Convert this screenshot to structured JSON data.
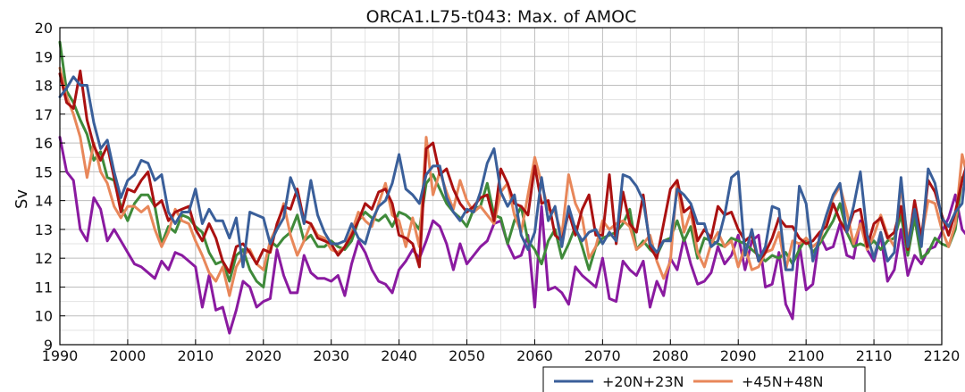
{
  "chart_data": {
    "type": "line",
    "title": "ORCA1.L75-t043: Max. of AMOC",
    "xlabel": "",
    "ylabel": "Sv",
    "xlim": [
      1990,
      2120
    ],
    "ylim": [
      9,
      20
    ],
    "xticks": [
      1990,
      2000,
      2010,
      2020,
      2030,
      2040,
      2050,
      2060,
      2070,
      2080,
      2090,
      2100,
      2110,
      2120
    ],
    "yticks": [
      9,
      10,
      11,
      12,
      13,
      14,
      15,
      16,
      17,
      18,
      19,
      20
    ],
    "grid": true,
    "legend_position": "bottom-center",
    "x_start": 1990,
    "series": [
      {
        "name": "+20N+23N",
        "color": "#3a5f9a",
        "values": [
          17.6,
          17.9,
          18.3,
          18.0,
          18.0,
          16.7,
          15.8,
          16.1,
          15.0,
          14.1,
          14.7,
          14.9,
          15.4,
          15.3,
          14.7,
          14.9,
          13.6,
          13.2,
          13.6,
          13.6,
          14.4,
          13.2,
          13.7,
          13.3,
          13.3,
          12.7,
          13.4,
          11.7,
          13.6,
          13.5,
          13.4,
          12.5,
          13.0,
          13.4,
          14.8,
          14.2,
          13.2,
          14.7,
          13.5,
          12.9,
          12.5,
          12.5,
          12.6,
          13.2,
          12.7,
          12.5,
          13.3,
          13.8,
          14.0,
          14.6,
          15.6,
          14.4,
          14.2,
          13.9,
          14.9,
          15.2,
          15.2,
          14.1,
          13.6,
          13.3,
          13.7,
          13.6,
          14.3,
          15.3,
          15.8,
          14.3,
          13.8,
          14.2,
          12.8,
          12.3,
          12.9,
          14.8,
          13.3,
          13.8,
          12.4,
          13.8,
          13.0,
          12.6,
          12.9,
          13.0,
          12.5,
          12.9,
          12.6,
          14.9,
          14.8,
          14.5,
          14.0,
          12.5,
          12.2,
          12.6,
          12.6,
          14.4,
          14.2,
          13.9,
          13.2,
          13.2,
          12.4,
          12.6,
          13.5,
          14.8,
          15.0,
          12.1,
          13.0,
          11.9,
          12.4,
          13.8,
          13.7,
          11.6,
          11.6,
          14.5,
          13.9,
          11.9,
          12.7,
          13.5,
          14.2,
          14.6,
          12.9,
          13.8,
          15.0,
          12.8,
          12.0,
          12.9,
          11.9,
          12.2,
          14.8,
          12.4,
          13.7,
          12.4,
          15.1,
          14.6,
          13.4,
          13.1,
          13.6,
          13.9,
          16.1,
          15.1
        ]
      },
      {
        "name": "",
        "color": "#aa1111",
        "values": [
          18.4,
          17.4,
          17.2,
          18.5,
          16.8,
          15.9,
          15.4,
          15.9,
          14.8,
          13.6,
          14.4,
          14.3,
          14.7,
          15.0,
          13.8,
          14.0,
          13.3,
          13.6,
          13.7,
          13.8,
          13.0,
          12.6,
          13.2,
          12.7,
          11.9,
          11.5,
          12.4,
          12.5,
          12.2,
          11.8,
          12.3,
          12.2,
          13.2,
          13.8,
          13.7,
          14.4,
          13.3,
          13.2,
          12.7,
          12.6,
          12.5,
          12.1,
          12.4,
          12.8,
          13.3,
          13.9,
          13.7,
          14.3,
          14.4,
          13.9,
          12.8,
          12.7,
          12.5,
          11.7,
          15.8,
          16.0,
          14.9,
          15.1,
          14.4,
          13.9,
          13.6,
          13.8,
          14.1,
          14.2,
          13.3,
          15.1,
          14.6,
          13.9,
          13.8,
          13.5,
          15.2,
          13.9,
          14.0,
          12.8,
          12.6,
          13.6,
          12.8,
          13.7,
          14.2,
          12.8,
          12.8,
          14.9,
          12.5,
          14.3,
          13.2,
          12.9,
          14.2,
          12.4,
          12.0,
          13.2,
          14.4,
          14.7,
          13.6,
          13.8,
          12.6,
          13.0,
          12.7,
          13.8,
          13.5,
          13.6,
          13.0,
          12.6,
          12.8,
          11.9,
          12.2,
          12.7,
          13.4,
          13.1,
          13.1,
          12.7,
          12.5,
          12.6,
          12.9,
          13.1,
          13.9,
          13.3,
          12.9,
          13.6,
          13.7,
          12.4,
          13.2,
          13.4,
          12.7,
          12.9,
          13.8,
          12.3,
          14.0,
          12.7,
          14.7,
          14.3,
          13.5,
          12.8,
          13.6,
          14.7,
          15.5,
          15.1
        ]
      },
      {
        "name": "",
        "color": "#3f8a3a",
        "values": [
          19.5,
          17.8,
          17.4,
          16.8,
          16.3,
          15.4,
          15.7,
          14.8,
          14.7,
          13.8,
          13.3,
          13.9,
          14.2,
          14.2,
          13.8,
          12.5,
          13.1,
          12.9,
          13.5,
          13.4,
          13.1,
          12.9,
          12.2,
          11.8,
          11.9,
          11.2,
          12.1,
          12.3,
          11.6,
          11.2,
          11.0,
          12.6,
          12.4,
          12.7,
          12.9,
          13.5,
          12.6,
          12.8,
          12.4,
          12.4,
          12.6,
          12.4,
          12.3,
          12.6,
          13.3,
          13.6,
          13.4,
          13.3,
          13.5,
          13.1,
          13.6,
          13.5,
          13.3,
          13.0,
          14.6,
          14.9,
          14.4,
          13.9,
          13.6,
          13.4,
          13.1,
          13.7,
          13.8,
          14.6,
          13.5,
          13.4,
          12.5,
          13.3,
          13.8,
          12.6,
          12.3,
          11.8,
          12.6,
          13.0,
          12.0,
          12.5,
          13.1,
          12.4,
          11.6,
          12.4,
          12.7,
          12.8,
          12.9,
          13.2,
          13.7,
          12.3,
          12.6,
          12.3,
          12.1,
          12.6,
          12.7,
          13.3,
          12.6,
          13.1,
          12.0,
          12.7,
          12.6,
          12.5,
          12.4,
          12.7,
          12.6,
          12.5,
          12.3,
          12.1,
          11.9,
          12.1,
          12.0,
          12.2,
          11.8,
          12.3,
          12.7,
          12.2,
          12.5,
          12.9,
          13.3,
          13.9,
          12.9,
          12.4,
          12.5,
          12.4,
          12.6,
          12.3,
          12.6,
          12.7,
          13.5,
          12.1,
          13.4,
          12.0,
          12.2,
          12.7,
          12.5,
          12.4,
          13.0,
          14.8,
          14.4,
          14.2
        ]
      },
      {
        "name": "+45N+48N",
        "color": "#e8875a",
        "values": [
          18.6,
          17.6,
          17.0,
          16.2,
          14.8,
          16.0,
          15.0,
          14.6,
          13.8,
          13.4,
          13.8,
          13.8,
          13.6,
          13.8,
          13.0,
          12.4,
          12.9,
          13.7,
          13.3,
          13.2,
          12.6,
          12.1,
          11.5,
          11.2,
          11.7,
          10.7,
          11.7,
          12.1,
          12.3,
          11.8,
          11.6,
          12.6,
          13.1,
          13.9,
          12.8,
          12.1,
          12.6,
          13.2,
          12.8,
          12.7,
          12.3,
          12.2,
          12.4,
          12.9,
          13.6,
          13.3,
          13.1,
          13.9,
          14.6,
          13.5,
          13.3,
          12.4,
          13.4,
          12.4,
          16.2,
          14.2,
          15.0,
          14.3,
          13.7,
          14.7,
          14.0,
          13.6,
          13.8,
          13.5,
          13.2,
          14.3,
          14.6,
          13.5,
          12.9,
          14.2,
          15.5,
          14.6,
          13.7,
          13.6,
          12.8,
          14.9,
          13.9,
          13.4,
          12.0,
          12.4,
          13.3,
          13.0,
          13.2,
          13.3,
          13.1,
          12.3,
          12.5,
          12.8,
          11.9,
          11.3,
          11.9,
          14.7,
          12.9,
          13.6,
          12.2,
          11.7,
          12.5,
          12.9,
          12.4,
          12.6,
          11.7,
          12.4,
          11.6,
          11.7,
          12.2,
          12.3,
          12.9,
          11.6,
          12.6,
          12.5,
          12.7,
          12.4,
          12.6,
          13.4,
          14.1,
          14.5,
          13.6,
          12.5,
          13.2,
          12.3,
          12.8,
          13.5,
          12.8,
          12.4,
          14.5,
          12.6,
          13.7,
          12.7,
          14.0,
          13.9,
          13.0,
          12.4,
          13.2,
          15.6,
          14.6,
          14.6
        ]
      },
      {
        "name": "",
        "color": "#8a1aa0",
        "values": [
          16.2,
          15.0,
          14.7,
          13.0,
          12.6,
          14.1,
          13.7,
          12.6,
          13.0,
          12.6,
          12.2,
          11.8,
          11.7,
          11.5,
          11.3,
          11.9,
          11.6,
          12.2,
          12.1,
          11.9,
          11.7,
          10.3,
          11.4,
          10.2,
          10.3,
          9.4,
          10.2,
          11.2,
          11.0,
          10.3,
          10.5,
          10.6,
          12.3,
          11.4,
          10.8,
          10.8,
          12.1,
          11.5,
          11.3,
          11.3,
          11.2,
          11.4,
          10.7,
          11.8,
          12.6,
          12.2,
          11.6,
          11.2,
          11.1,
          10.8,
          11.6,
          11.9,
          12.3,
          12.0,
          12.6,
          13.3,
          13.1,
          12.5,
          11.6,
          12.5,
          11.8,
          12.1,
          12.4,
          12.6,
          13.2,
          13.3,
          12.5,
          12.0,
          12.1,
          12.8,
          10.3,
          13.8,
          10.9,
          11.0,
          10.8,
          10.4,
          11.7,
          11.4,
          11.2,
          11.0,
          12.0,
          10.6,
          10.5,
          11.9,
          11.6,
          11.4,
          11.9,
          10.3,
          11.2,
          10.7,
          12.0,
          11.6,
          12.7,
          11.8,
          11.1,
          11.2,
          11.5,
          12.4,
          11.8,
          12.1,
          12.8,
          11.6,
          12.6,
          12.8,
          11.0,
          11.1,
          12.2,
          10.4,
          9.9,
          12.5,
          10.9,
          11.1,
          12.8,
          12.3,
          12.4,
          13.2,
          12.1,
          12.0,
          13.3,
          12.3,
          11.9,
          12.8,
          11.2,
          11.6,
          13.0,
          11.4,
          12.1,
          11.8,
          12.3,
          12.4,
          12.9,
          13.4,
          14.2,
          13.0,
          12.7,
          13.3
        ]
      }
    ]
  }
}
